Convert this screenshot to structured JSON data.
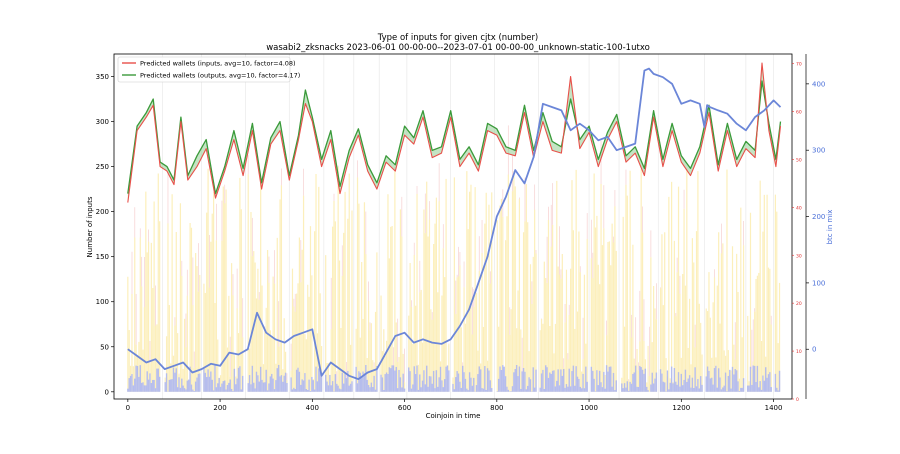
{
  "chart_data": {
    "type": "line",
    "title": "Type of inputs for given cjtx (number)",
    "subtitle": "wasabi2_zksnacks 2023-06-01 00-00-00--2023-07-01 00-00-00_unknown-static-100-1utxo",
    "xlabel": "Coinjoin in time",
    "ylabel": "Number of inputs",
    "y2label": "btc in mix",
    "xlim": [
      -30,
      1440
    ],
    "ylim": [
      -8,
      375
    ],
    "y2lim": [
      -75,
      445
    ],
    "y3lim": [
      0,
      72
    ],
    "x_ticks": [
      0,
      200,
      400,
      600,
      800,
      1000,
      1200,
      1400
    ],
    "y_ticks": [
      0,
      50,
      100,
      150,
      200,
      250,
      300,
      350
    ],
    "y2_ticks": [
      0,
      100,
      200,
      300,
      400
    ],
    "y3_ticks": [
      0,
      10,
      20,
      30,
      40,
      50,
      60,
      70
    ],
    "legend_position": "top-left",
    "grid": false,
    "colors": {
      "inputs": "#e8504a",
      "outputs": "#3a9a3a",
      "btc_in_mix": "#6b86d8",
      "fill_inputs": "#f4a39a",
      "fill_outputs": "#7cc47c",
      "bars_yellow": "#fbe9a4",
      "bars_blue": "#a9b4f5",
      "bars_pink": "#f2b9b9",
      "right_axis": "#4a6fd8",
      "red_axis": "#e03030"
    },
    "series": [
      {
        "name": "Predicted wallets (inputs, avg=10, factor=4.08)",
        "x": [
          0,
          20,
          40,
          55,
          70,
          85,
          100,
          115,
          130,
          150,
          170,
          190,
          210,
          230,
          250,
          270,
          290,
          310,
          330,
          350,
          370,
          385,
          400,
          420,
          440,
          460,
          480,
          500,
          520,
          540,
          560,
          580,
          600,
          620,
          640,
          660,
          680,
          700,
          720,
          740,
          760,
          780,
          800,
          820,
          840,
          860,
          880,
          900,
          920,
          940,
          960,
          980,
          1000,
          1020,
          1040,
          1060,
          1080,
          1100,
          1120,
          1140,
          1160,
          1180,
          1200,
          1220,
          1240,
          1260,
          1280,
          1300,
          1320,
          1340,
          1360,
          1375,
          1390,
          1405,
          1415
        ],
        "values": [
          210,
          290,
          305,
          318,
          250,
          245,
          230,
          300,
          235,
          250,
          270,
          215,
          245,
          280,
          240,
          290,
          225,
          275,
          290,
          235,
          280,
          320,
          300,
          250,
          280,
          220,
          260,
          285,
          245,
          225,
          255,
          245,
          285,
          275,
          305,
          260,
          265,
          305,
          250,
          265,
          245,
          290,
          285,
          265,
          262,
          310,
          260,
          300,
          268,
          265,
          350,
          270,
          288,
          250,
          280,
          300,
          255,
          265,
          240,
          305,
          250,
          290,
          255,
          240,
          265,
          310,
          245,
          290,
          250,
          270,
          260,
          365,
          290,
          250,
          295
        ]
      },
      {
        "name": "Predicted wallets (outputs, avg=10, factor=4.17)",
        "x": [
          0,
          20,
          40,
          55,
          70,
          85,
          100,
          115,
          130,
          150,
          170,
          190,
          210,
          230,
          250,
          270,
          290,
          310,
          330,
          350,
          370,
          385,
          400,
          420,
          440,
          460,
          480,
          500,
          520,
          540,
          560,
          580,
          600,
          620,
          640,
          660,
          680,
          700,
          720,
          740,
          760,
          780,
          800,
          820,
          840,
          860,
          880,
          900,
          920,
          940,
          960,
          980,
          1000,
          1020,
          1040,
          1060,
          1080,
          1100,
          1120,
          1140,
          1160,
          1180,
          1200,
          1220,
          1240,
          1260,
          1280,
          1300,
          1320,
          1340,
          1360,
          1375,
          1390,
          1405,
          1415
        ],
        "values": [
          220,
          295,
          310,
          325,
          255,
          250,
          235,
          305,
          240,
          262,
          280,
          220,
          250,
          290,
          248,
          298,
          232,
          282,
          300,
          240,
          285,
          335,
          305,
          258,
          290,
          228,
          268,
          292,
          252,
          232,
          262,
          252,
          295,
          282,
          312,
          268,
          272,
          312,
          258,
          272,
          252,
          298,
          292,
          272,
          268,
          318,
          268,
          310,
          278,
          272,
          325,
          280,
          295,
          258,
          288,
          308,
          262,
          272,
          248,
          312,
          258,
          298,
          262,
          248,
          272,
          318,
          252,
          298,
          258,
          278,
          268,
          345,
          298,
          258,
          300
        ]
      },
      {
        "name": "btc in mix",
        "axis": "right",
        "x": [
          0,
          20,
          40,
          60,
          80,
          100,
          120,
          140,
          160,
          180,
          200,
          220,
          240,
          260,
          280,
          300,
          320,
          340,
          360,
          380,
          400,
          420,
          440,
          460,
          480,
          500,
          520,
          540,
          560,
          580,
          600,
          620,
          640,
          660,
          680,
          700,
          720,
          740,
          760,
          780,
          800,
          820,
          840,
          860,
          880,
          900,
          920,
          940,
          960,
          980,
          1000,
          1020,
          1040,
          1060,
          1080,
          1100,
          1120,
          1130,
          1140,
          1160,
          1180,
          1200,
          1220,
          1240,
          1250,
          1256,
          1262,
          1280,
          1300,
          1320,
          1340,
          1360,
          1380,
          1400,
          1415
        ],
        "values": [
          0,
          -10,
          -20,
          -15,
          -30,
          -25,
          -20,
          -35,
          -30,
          -22,
          -25,
          -5,
          -8,
          0,
          55,
          25,
          15,
          10,
          20,
          25,
          30,
          -40,
          -20,
          -30,
          -40,
          -45,
          -35,
          -30,
          -5,
          20,
          25,
          10,
          15,
          10,
          8,
          15,
          35,
          60,
          100,
          140,
          200,
          230,
          270,
          250,
          290,
          370,
          365,
          360,
          330,
          340,
          330,
          315,
          320,
          300,
          305,
          310,
          420,
          423,
          415,
          410,
          400,
          370,
          375,
          370,
          335,
          368,
          365,
          360,
          355,
          340,
          330,
          350,
          360,
          375,
          365
        ]
      }
    ],
    "background_bars": {
      "description": "per-coinjoin composition bars",
      "yellow_range": [
        10,
        250
      ],
      "blue_range": [
        0,
        30
      ],
      "gaps_x": [
        75,
        160,
        255,
        350,
        425,
        490,
        545,
        605,
        700,
        795,
        890,
        1000,
        1065,
        1150,
        1250,
        1340,
        1400
      ]
    }
  }
}
